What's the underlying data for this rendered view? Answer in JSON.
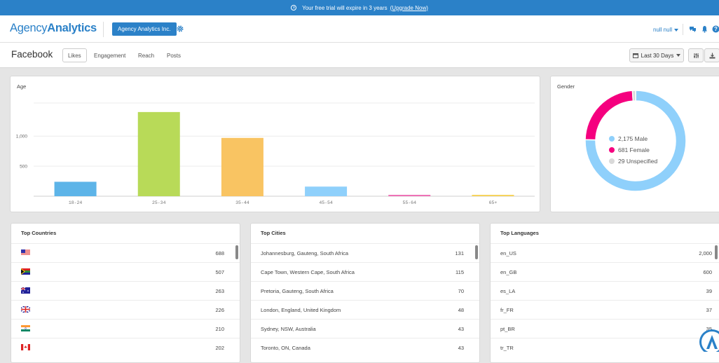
{
  "banner": {
    "text": "Your free trial will expire in 3 years",
    "link": "(Upgrade Now)"
  },
  "header": {
    "logo_light": "Agency",
    "logo_bold": "Analytics",
    "agency_button": "Agency Analytics Inc.",
    "user": "null null"
  },
  "page": {
    "title": "Facebook",
    "tabs": [
      "Likes",
      "Engagement",
      "Reach",
      "Posts"
    ],
    "date_range": "Last 30 Days"
  },
  "age_chart": {
    "title": "Age"
  },
  "gender_chart": {
    "title": "Gender",
    "legend": [
      {
        "label": "2,175 Male",
        "color": "#8fd0fb"
      },
      {
        "label": "681 Female",
        "color": "#f5007f"
      },
      {
        "label": "29 Unspecified",
        "color": "#d9d9d9"
      }
    ]
  },
  "chart_data": [
    {
      "type": "bar",
      "title": "Age",
      "categories": [
        "18-24",
        "25-34",
        "35-44",
        "45-54",
        "55-64",
        "65+"
      ],
      "values": [
        240,
        1400,
        970,
        160,
        20,
        20
      ],
      "ytick_labels": [
        "500",
        "1,000"
      ],
      "yticks": [
        500,
        1000
      ],
      "ylim": [
        0,
        1550
      ],
      "colors": [
        "#5db4e8",
        "#b8da58",
        "#f9c462",
        "#8fd0fb",
        "#ee73b6",
        "#f6d35d"
      ],
      "grid": true
    },
    {
      "type": "pie",
      "title": "Gender",
      "categories": [
        "Male",
        "Female",
        "Unspecified"
      ],
      "values": [
        2175,
        681,
        29
      ],
      "colors": [
        "#8fd0fb",
        "#f5007f",
        "#d9d9d9"
      ],
      "donut": true
    }
  ],
  "top_countries": {
    "title": "Top Countries",
    "rows": [
      {
        "flag": "us",
        "value": "688"
      },
      {
        "flag": "za",
        "value": "507"
      },
      {
        "flag": "au",
        "value": "263"
      },
      {
        "flag": "gb",
        "value": "226"
      },
      {
        "flag": "in",
        "value": "210"
      },
      {
        "flag": "ca",
        "value": "202"
      }
    ]
  },
  "top_cities": {
    "title": "Top Cities",
    "rows": [
      {
        "label": "Johannesburg, Gauteng, South Africa",
        "value": "131"
      },
      {
        "label": "Cape Town, Western Cape, South Africa",
        "value": "115"
      },
      {
        "label": "Pretoria, Gauteng, South Africa",
        "value": "70"
      },
      {
        "label": "London, England, United Kingdom",
        "value": "48"
      },
      {
        "label": "Sydney, NSW, Australia",
        "value": "43"
      },
      {
        "label": "Toronto, ON, Canada",
        "value": "43"
      }
    ]
  },
  "top_languages": {
    "title": "Top Languages",
    "rows": [
      {
        "label": "en_US",
        "value": "2,000"
      },
      {
        "label": "en_GB",
        "value": "600"
      },
      {
        "label": "es_LA",
        "value": "39"
      },
      {
        "label": "fr_FR",
        "value": "37"
      },
      {
        "label": "pt_BR",
        "value": "35"
      },
      {
        "label": "tr_TR",
        "value": ""
      }
    ]
  }
}
